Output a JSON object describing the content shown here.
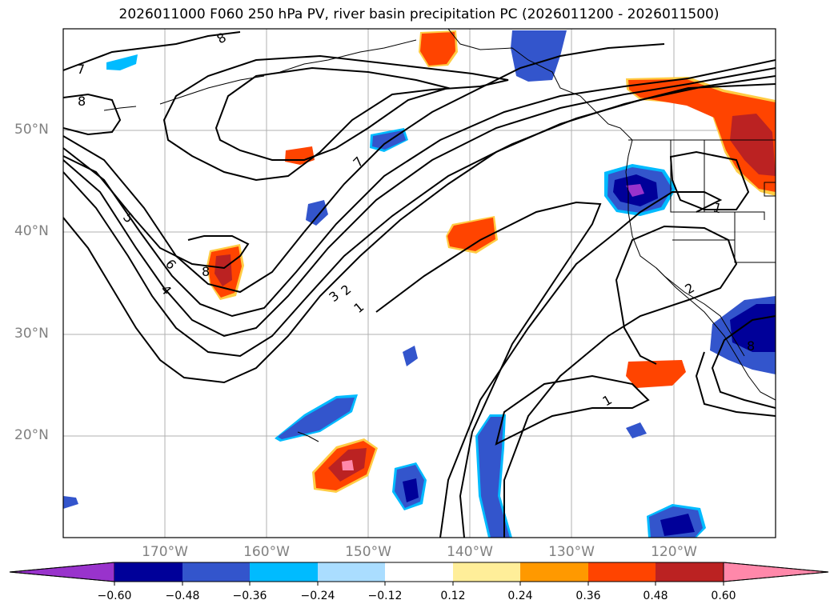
{
  "title": "2026011000 F060 250 hPa PV, river basin precipitation PC (2026011200 - 2026011500)",
  "map": {
    "lon_range": [
      -180,
      -110
    ],
    "lat_range": [
      10,
      60
    ],
    "lat_labels": [
      "50°N",
      "40°N",
      "30°N",
      "20°N"
    ],
    "lon_labels": [
      "170°W",
      "160°W",
      "150°W",
      "140°W",
      "130°W",
      "120°W"
    ],
    "contour_labels": [
      "8",
      "7",
      "8",
      "5",
      "6",
      "4",
      "8",
      "7",
      "3",
      "2",
      "1",
      "1",
      "1",
      "2",
      "8"
    ]
  },
  "colorbar": {
    "colors": [
      "#9933cc",
      "#000099",
      "#3355cc",
      "#00bbff",
      "#aaddff",
      "#ffffff",
      "#ffee99",
      "#ff9900",
      "#ff4400",
      "#bb2222",
      "#ff88aa"
    ],
    "ticks": [
      "−0.60",
      "−0.48",
      "−0.36",
      "−0.24",
      "−0.12",
      "0.12",
      "0.24",
      "0.36",
      "0.48",
      "0.60"
    ]
  }
}
